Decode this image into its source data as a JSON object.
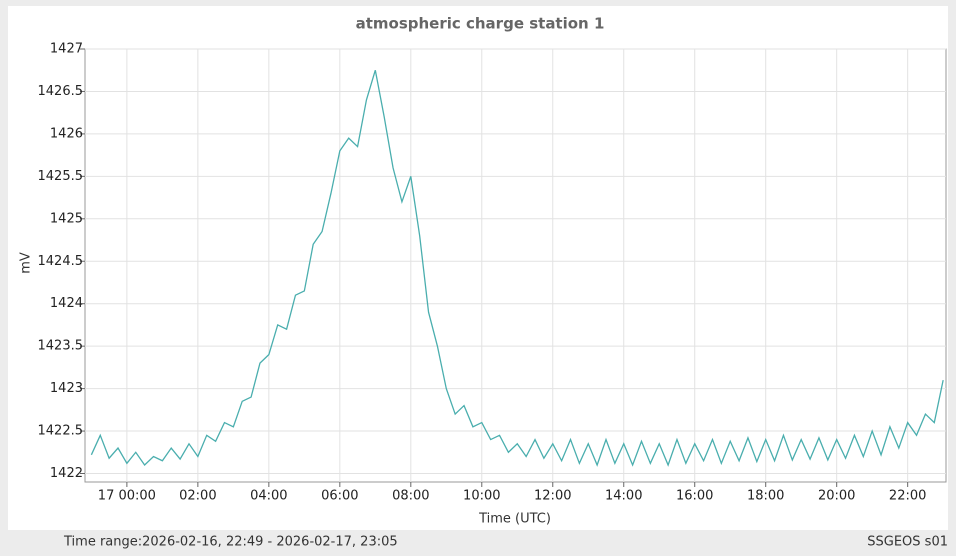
{
  "chart_data": {
    "type": "line",
    "title": "atmospheric charge station 1",
    "y_label": "mV",
    "x_label": "Time (UTC)",
    "x": [
      -1,
      -0.75,
      -0.5,
      -0.25,
      0,
      0.25,
      0.5,
      0.75,
      1,
      1.25,
      1.5,
      1.75,
      2,
      2.25,
      2.5,
      2.75,
      3,
      3.25,
      3.5,
      3.75,
      4,
      4.25,
      4.5,
      4.75,
      5,
      5.25,
      5.5,
      5.75,
      6,
      6.25,
      6.5,
      6.75,
      7,
      7.25,
      7.5,
      7.75,
      8,
      8.25,
      8.5,
      8.75,
      9,
      9.25,
      9.5,
      9.75,
      10,
      10.25,
      10.5,
      10.75,
      11,
      11.25,
      11.5,
      11.75,
      12,
      12.25,
      12.5,
      12.75,
      13,
      13.25,
      13.5,
      13.75,
      14,
      14.25,
      14.5,
      14.75,
      15,
      15.25,
      15.5,
      15.75,
      16,
      16.25,
      16.5,
      16.75,
      17,
      17.25,
      17.5,
      17.75,
      18,
      18.25,
      18.5,
      18.75,
      19,
      19.25,
      19.5,
      19.75,
      20,
      20.25,
      20.5,
      20.75,
      21,
      21.25,
      21.5,
      21.75,
      22,
      22.25,
      22.5,
      22.75,
      23
    ],
    "series": [
      {
        "color": "#4aaeae",
        "values": [
          1422.22,
          1422.45,
          1422.18,
          1422.3,
          1422.12,
          1422.25,
          1422.1,
          1422.2,
          1422.15,
          1422.3,
          1422.17,
          1422.35,
          1422.2,
          1422.45,
          1422.38,
          1422.6,
          1422.55,
          1422.85,
          1422.9,
          1423.3,
          1423.4,
          1423.75,
          1423.7,
          1424.1,
          1424.15,
          1424.7,
          1424.85,
          1425.3,
          1425.8,
          1425.95,
          1425.85,
          1426.4,
          1426.75,
          1426.2,
          1425.6,
          1425.2,
          1425.5,
          1424.8,
          1423.9,
          1423.5,
          1423,
          1422.7,
          1422.8,
          1422.55,
          1422.6,
          1422.4,
          1422.45,
          1422.25,
          1422.35,
          1422.2,
          1422.4,
          1422.18,
          1422.35,
          1422.15,
          1422.4,
          1422.12,
          1422.35,
          1422.1,
          1422.4,
          1422.12,
          1422.35,
          1422.1,
          1422.38,
          1422.12,
          1422.35,
          1422.1,
          1422.4,
          1422.12,
          1422.35,
          1422.15,
          1422.4,
          1422.12,
          1422.38,
          1422.15,
          1422.42,
          1422.14,
          1422.4,
          1422.15,
          1422.45,
          1422.16,
          1422.4,
          1422.17,
          1422.42,
          1422.16,
          1422.4,
          1422.18,
          1422.45,
          1422.2,
          1422.5,
          1422.22,
          1422.55,
          1422.3,
          1422.6,
          1422.45,
          1422.7,
          1422.6,
          1423.1
        ]
      }
    ],
    "xlim": [
      -1.18,
      23.08
    ],
    "xticks": [
      {
        "value": 0,
        "label": "17 00:00"
      },
      {
        "value": 2,
        "label": "02:00"
      },
      {
        "value": 4,
        "label": "04:00"
      },
      {
        "value": 6,
        "label": "06:00"
      },
      {
        "value": 8,
        "label": "08:00"
      },
      {
        "value": 10,
        "label": "10:00"
      },
      {
        "value": 12,
        "label": "12:00"
      },
      {
        "value": 14,
        "label": "14:00"
      },
      {
        "value": 16,
        "label": "16:00"
      },
      {
        "value": 18,
        "label": "18:00"
      },
      {
        "value": 20,
        "label": "20:00"
      },
      {
        "value": 22,
        "label": "22:00"
      }
    ],
    "ylim": [
      1421.9,
      1427
    ],
    "yticks": [
      1422,
      1422.5,
      1423,
      1423.5,
      1424,
      1424.5,
      1425,
      1425.5,
      1426,
      1426.5,
      1427
    ],
    "grid": true
  },
  "footer": {
    "left": "Time range:2026-02-16, 22:49 - 2026-02-17, 23:05",
    "right": "SSGEOS s01"
  }
}
